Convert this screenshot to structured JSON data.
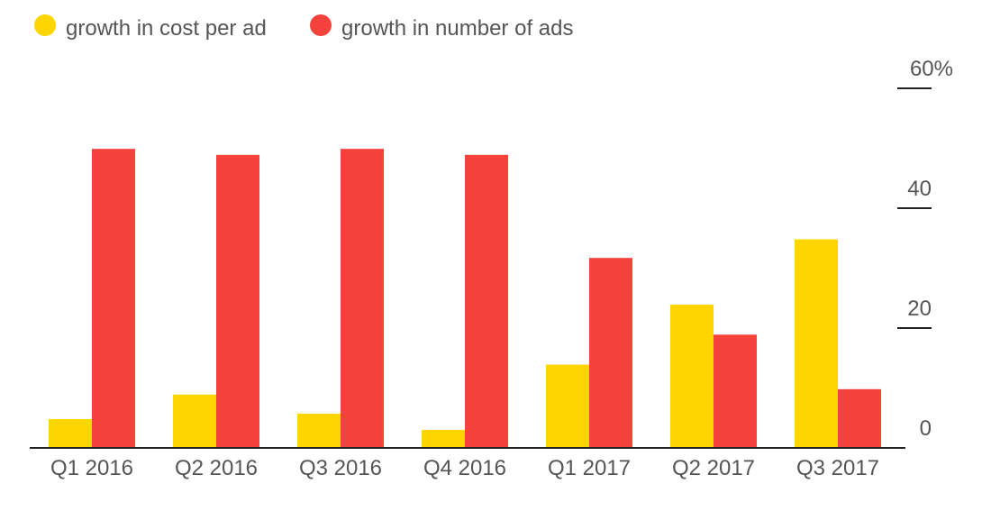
{
  "chart_data": {
    "type": "bar",
    "title": "",
    "xlabel": "",
    "ylabel": "",
    "ylim": [
      0,
      60
    ],
    "grid": false,
    "legend_placement": "top-left",
    "y_axis_side": "right",
    "y_ticks": [
      {
        "value": 0,
        "label": "0"
      },
      {
        "value": 20,
        "label": "20"
      },
      {
        "value": 40,
        "label": "40"
      },
      {
        "value": 60,
        "label": "60%"
      }
    ],
    "categories": [
      "Q1 2016",
      "Q2 2016",
      "Q3 2016",
      "Q4 2016",
      "Q1 2017",
      "Q2 2017",
      "Q3 2017"
    ],
    "series": [
      {
        "name": "growth in cost per ad",
        "color": "#ffd500",
        "values": [
          4.8,
          8.9,
          5.7,
          3.0,
          13.9,
          23.9,
          34.8
        ]
      },
      {
        "name": "growth in number of ads",
        "color": "#f5423c",
        "values": [
          49.9,
          48.9,
          49.9,
          48.9,
          31.7,
          18.9,
          9.8
        ]
      }
    ]
  }
}
